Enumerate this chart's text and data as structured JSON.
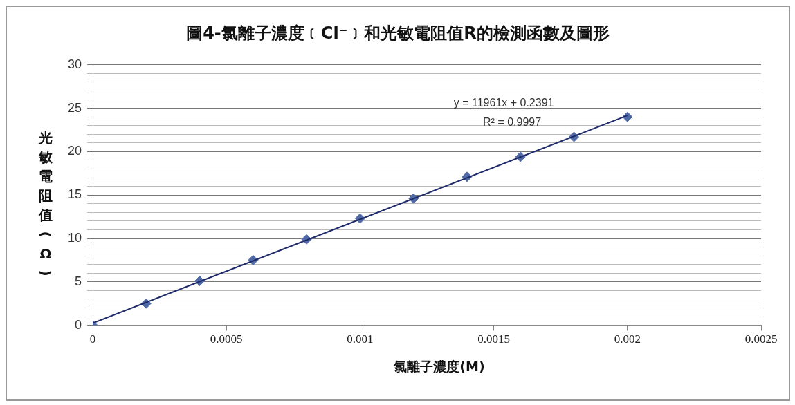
{
  "chart_data": {
    "type": "scatter",
    "title": "圖4-氯離子濃度﹝Cl⁻﹞和光敏電阻值R的檢測函數及圖形",
    "xlabel": "氯離子濃度(M)",
    "ylabel": "光敏電阻值(Ω)",
    "annotations": [
      "y = 11961x + 0.2391",
      "R² = 0.9997"
    ],
    "x": [
      0,
      0.0002,
      0.0004,
      0.0006,
      0.0008,
      0.001,
      0.0012,
      0.0014,
      0.0016,
      0.0018,
      0.002
    ],
    "series": [
      {
        "color": "#4f6aa6",
        "marker": "diamond",
        "values": [
          0,
          2.5,
          5.1,
          7.5,
          9.9,
          12.3,
          14.6,
          17.1,
          19.4,
          21.7,
          24.0
        ]
      },
      {
        "type": "line",
        "color": "#1f2a6b",
        "marker": "none",
        "x": [
          0,
          0.002
        ],
        "values": [
          0.24,
          24.16
        ]
      }
    ],
    "xlim": [
      0,
      0.0025
    ],
    "xticks": [
      0,
      0.0005,
      0.001,
      0.0015,
      0.002,
      0.0025
    ],
    "ylim": [
      0,
      30
    ],
    "yticks": [
      0,
      {
        "value": 1,
        "label": null
      },
      {
        "value": 2,
        "label": null
      },
      {
        "value": 3,
        "label": null
      },
      {
        "value": 4,
        "label": null
      },
      5,
      {
        "value": 6,
        "label": null
      },
      {
        "value": 7,
        "label": null
      },
      {
        "value": 8,
        "label": null
      },
      {
        "value": 9,
        "label": null
      },
      10,
      {
        "value": 11,
        "label": null
      },
      {
        "value": 12,
        "label": null
      },
      {
        "value": 13,
        "label": null
      },
      {
        "value": 14,
        "label": null
      },
      15,
      {
        "value": 16,
        "label": null
      },
      {
        "value": 17,
        "label": null
      },
      {
        "value": 18,
        "label": null
      },
      {
        "value": 19,
        "label": null
      },
      20,
      {
        "value": 21,
        "label": null
      },
      {
        "value": 22,
        "label": null
      },
      {
        "value": 23,
        "label": null
      },
      {
        "value": 24,
        "label": null
      },
      25,
      {
        "value": 26,
        "label": null
      },
      {
        "value": 27,
        "label": null
      },
      {
        "value": 28,
        "label": null
      },
      {
        "value": 29,
        "label": null
      },
      30
    ],
    "grid": "y",
    "legend": false
  }
}
